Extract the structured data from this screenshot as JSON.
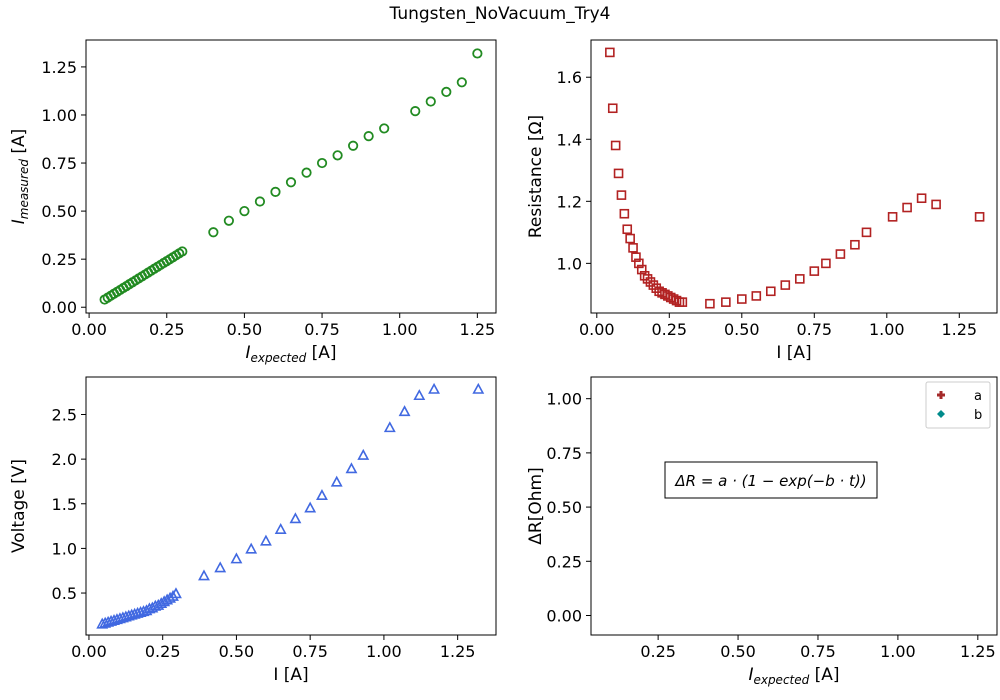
{
  "figure_title": "Tungsten_NoVacuum_Try4",
  "chart_data": [
    {
      "type": "scatter",
      "panel": "top-left",
      "xlabel_main": "I",
      "xlabel_sub": "expected",
      "xlabel_unit": " [A]",
      "ylabel_main": "I",
      "ylabel_sub": "measured",
      "ylabel_unit": " [A]",
      "xlim": [
        -0.01,
        1.31
      ],
      "ylim": [
        -0.03,
        1.39
      ],
      "xticks": [
        0.0,
        0.25,
        0.5,
        0.75,
        1.0,
        1.25
      ],
      "xtick_labels": [
        "0.00",
        "0.25",
        "0.50",
        "0.75",
        "1.00",
        "1.25"
      ],
      "yticks": [
        0.0,
        0.25,
        0.5,
        0.75,
        1.0,
        1.25
      ],
      "ytick_labels": [
        "0.00",
        "0.25",
        "0.50",
        "0.75",
        "1.00",
        "1.25"
      ],
      "marker": "circle",
      "color": "#228b22",
      "x": [
        0.05,
        0.06,
        0.07,
        0.08,
        0.09,
        0.1,
        0.11,
        0.12,
        0.13,
        0.14,
        0.15,
        0.16,
        0.17,
        0.18,
        0.19,
        0.2,
        0.21,
        0.22,
        0.23,
        0.24,
        0.25,
        0.26,
        0.27,
        0.28,
        0.29,
        0.3,
        0.4,
        0.45,
        0.5,
        0.55,
        0.6,
        0.65,
        0.7,
        0.75,
        0.8,
        0.85,
        0.9,
        0.95,
        1.05,
        1.1,
        1.15,
        1.2,
        1.25
      ],
      "y": [
        0.04,
        0.05,
        0.06,
        0.07,
        0.08,
        0.09,
        0.1,
        0.11,
        0.12,
        0.13,
        0.14,
        0.15,
        0.16,
        0.17,
        0.18,
        0.19,
        0.2,
        0.21,
        0.22,
        0.23,
        0.24,
        0.25,
        0.26,
        0.27,
        0.28,
        0.29,
        0.39,
        0.45,
        0.5,
        0.55,
        0.6,
        0.65,
        0.7,
        0.75,
        0.79,
        0.84,
        0.89,
        0.93,
        1.02,
        1.07,
        1.12,
        1.17,
        1.32
      ]
    },
    {
      "type": "scatter",
      "panel": "top-right",
      "xlabel": "I [A]",
      "ylabel": "Resistance [Ω]",
      "xlim": [
        -0.02,
        1.38
      ],
      "ylim": [
        0.84,
        1.72
      ],
      "xticks": [
        0.0,
        0.25,
        0.5,
        0.75,
        1.0,
        1.25
      ],
      "xtick_labels": [
        "0.00",
        "0.25",
        "0.50",
        "0.75",
        "1.00",
        "1.25"
      ],
      "yticks": [
        1.0,
        1.2,
        1.4,
        1.6
      ],
      "ytick_labels": [
        "1.0",
        "1.2",
        "1.4",
        "1.6"
      ],
      "marker": "square",
      "color": "#b22222",
      "x": [
        0.045,
        0.055,
        0.065,
        0.075,
        0.085,
        0.095,
        0.105,
        0.115,
        0.125,
        0.135,
        0.145,
        0.155,
        0.165,
        0.175,
        0.185,
        0.195,
        0.205,
        0.215,
        0.225,
        0.235,
        0.245,
        0.255,
        0.265,
        0.275,
        0.285,
        0.295,
        0.39,
        0.445,
        0.5,
        0.55,
        0.6,
        0.65,
        0.7,
        0.75,
        0.79,
        0.84,
        0.89,
        0.93,
        1.02,
        1.07,
        1.12,
        1.17,
        1.32
      ],
      "y": [
        1.68,
        1.5,
        1.38,
        1.29,
        1.22,
        1.16,
        1.11,
        1.08,
        1.05,
        1.02,
        1.0,
        0.98,
        0.96,
        0.95,
        0.94,
        0.93,
        0.92,
        0.91,
        0.905,
        0.9,
        0.895,
        0.89,
        0.885,
        0.88,
        0.875,
        0.875,
        0.87,
        0.875,
        0.885,
        0.895,
        0.91,
        0.93,
        0.95,
        0.975,
        1.0,
        1.03,
        1.06,
        1.1,
        1.15,
        1.18,
        1.21,
        1.19,
        1.15
      ]
    },
    {
      "type": "scatter",
      "panel": "bottom-left",
      "xlabel": "I [A]",
      "ylabel": "Voltage [V]",
      "xlim": [
        -0.01,
        1.38
      ],
      "ylim": [
        0.03,
        2.92
      ],
      "xticks": [
        0.0,
        0.25,
        0.5,
        0.75,
        1.0,
        1.25
      ],
      "xtick_labels": [
        "0.00",
        "0.25",
        "0.50",
        "0.75",
        "1.00",
        "1.25"
      ],
      "yticks": [
        0.5,
        1.0,
        1.5,
        2.0,
        2.5
      ],
      "ytick_labels": [
        "0.5",
        "1.0",
        "1.5",
        "2.0",
        "2.5"
      ],
      "marker": "triangle",
      "color": "#4169e1",
      "x": [
        0.045,
        0.055,
        0.065,
        0.075,
        0.085,
        0.095,
        0.105,
        0.115,
        0.125,
        0.135,
        0.145,
        0.155,
        0.165,
        0.175,
        0.185,
        0.195,
        0.205,
        0.215,
        0.225,
        0.235,
        0.245,
        0.255,
        0.265,
        0.275,
        0.285,
        0.295,
        0.39,
        0.445,
        0.5,
        0.55,
        0.6,
        0.65,
        0.7,
        0.75,
        0.79,
        0.84,
        0.89,
        0.93,
        1.02,
        1.07,
        1.12,
        1.17,
        1.32
      ],
      "y": [
        0.15,
        0.16,
        0.17,
        0.18,
        0.19,
        0.2,
        0.21,
        0.22,
        0.23,
        0.24,
        0.25,
        0.26,
        0.27,
        0.28,
        0.29,
        0.3,
        0.32,
        0.33,
        0.35,
        0.36,
        0.38,
        0.4,
        0.42,
        0.44,
        0.46,
        0.49,
        0.69,
        0.78,
        0.88,
        0.99,
        1.08,
        1.21,
        1.33,
        1.45,
        1.59,
        1.74,
        1.89,
        2.04,
        2.35,
        2.53,
        2.71,
        2.78,
        2.78
      ]
    },
    {
      "type": "scatter",
      "panel": "bottom-right",
      "xlabel_main": "I",
      "xlabel_sub": "expected",
      "xlabel_unit": " [A]",
      "ylabel": "ΔR[Ohm]",
      "xlim": [
        0.04,
        1.31
      ],
      "ylim": [
        -0.09,
        1.1
      ],
      "xticks": [
        0.25,
        0.5,
        0.75,
        1.0,
        1.25
      ],
      "xtick_labels": [
        "0.25",
        "0.50",
        "0.75",
        "1.00",
        "1.25"
      ],
      "yticks": [
        0.0,
        0.25,
        0.5,
        0.75,
        1.0
      ],
      "ytick_labels": [
        "0.00",
        "0.25",
        "0.50",
        "0.75",
        "1.00"
      ],
      "series": [
        {
          "name": "a",
          "color": "#a52a2a",
          "values": []
        },
        {
          "name": "b",
          "color": "#008b8b",
          "values": []
        }
      ],
      "legend": "top-right",
      "annotation": "ΔR = a · (1 − exp(−b · t))"
    }
  ]
}
